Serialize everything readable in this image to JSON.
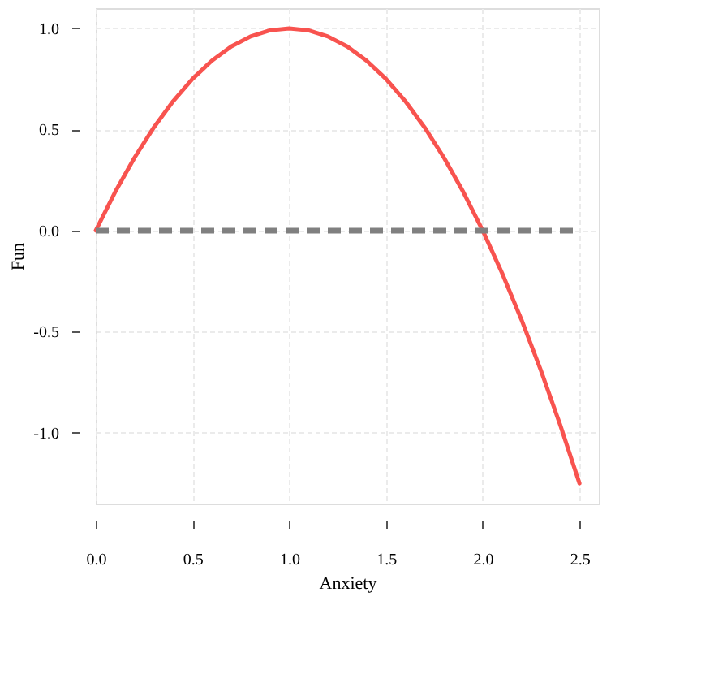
{
  "chart_data": {
    "type": "line",
    "xlabel": "Anxiety",
    "ylabel": "Fun",
    "x": [
      0,
      0.1,
      0.2,
      0.3,
      0.4,
      0.5,
      0.6,
      0.7,
      0.8,
      0.9,
      1.0,
      1.1,
      1.2,
      1.3,
      1.4,
      1.5,
      1.6,
      1.7,
      1.8,
      1.9,
      2.0,
      2.1,
      2.2,
      2.3,
      2.4,
      2.5
    ],
    "series": [
      {
        "color": "#f8534f",
        "values": [
          0,
          0.19,
          0.36,
          0.51,
          0.64,
          0.75,
          0.84,
          0.91,
          0.96,
          0.99,
          1,
          0.99,
          0.96,
          0.91,
          0.84,
          0.75,
          0.64,
          0.51,
          0.36,
          0.19,
          0,
          -0.21,
          -0.44,
          -0.69,
          -0.96,
          -1.25
        ]
      }
    ],
    "xlim": [
      0,
      2.6
    ],
    "ylim": [
      -1.35,
      1.1
    ],
    "xticks": [
      {
        "value": 0,
        "label": "0.0"
      },
      0.5,
      {
        "value": 1,
        "label": "1.0"
      },
      1.5,
      {
        "value": 2,
        "label": "2.0"
      },
      2.5
    ],
    "yticks": [
      {
        "value": -1,
        "label": "-1.0"
      },
      -0.5,
      {
        "value": 0,
        "label": "0.0"
      },
      0.5,
      {
        "value": 1,
        "label": "1.0"
      }
    ],
    "ref_lines": [
      {
        "axis": "y",
        "value": 0,
        "color": "#808080",
        "line_style": "dashed"
      }
    ],
    "grid": true,
    "marker": "none",
    "line_style": "solid"
  }
}
